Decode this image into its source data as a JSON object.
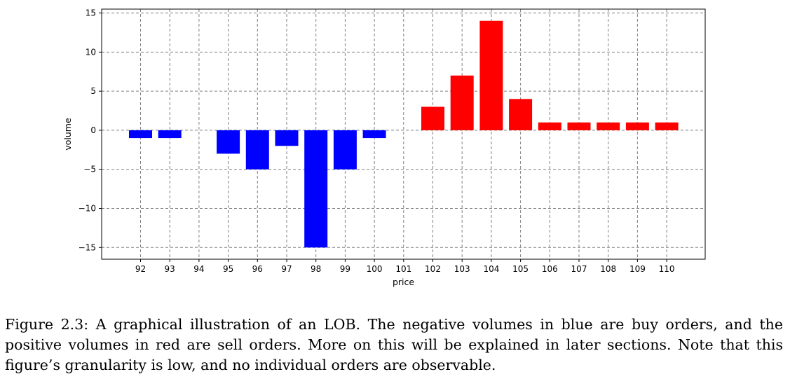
{
  "chart_data": {
    "type": "bar",
    "xlabel": "price",
    "ylabel": "volume",
    "x": [
      92,
      93,
      94,
      95,
      96,
      97,
      98,
      99,
      100,
      101,
      102,
      103,
      104,
      105,
      106,
      107,
      108,
      109,
      110
    ],
    "xtick_labels": [
      "92",
      "93",
      "94",
      "95",
      "96",
      "97",
      "98",
      "99",
      "100",
      "101",
      "102",
      "103",
      "104",
      "105",
      "106",
      "107",
      "108",
      "109",
      "110"
    ],
    "series": [
      {
        "name": "",
        "color": "#0000ff",
        "values": [
          -1,
          -1,
          null,
          -3,
          -5,
          -2,
          -15,
          -5,
          -1,
          null,
          null,
          null,
          null,
          null,
          null,
          null,
          null,
          null,
          null
        ]
      },
      {
        "name": "",
        "color": "#ff0000",
        "values": [
          null,
          null,
          null,
          null,
          null,
          null,
          null,
          null,
          null,
          null,
          3,
          7,
          14,
          4,
          1,
          1,
          1,
          1,
          1
        ]
      }
    ],
    "ylim": [
      -16.5,
      15.5
    ],
    "yticks": [
      -15,
      -10,
      -5,
      0,
      5,
      10,
      15
    ],
    "ytick_labels": [
      "−15",
      "−10",
      "−5",
      "0",
      "5",
      "10",
      "15"
    ],
    "grid": true,
    "grid_style": "dashed"
  },
  "caption": "Figure 2.3: A graphical illustration of an LOB. The negative volumes in blue are buy orders, and the positive volumes in red are sell orders. More on this will be explained in later sections. Note that this figure’s granularity is low, and no individual orders are observable."
}
